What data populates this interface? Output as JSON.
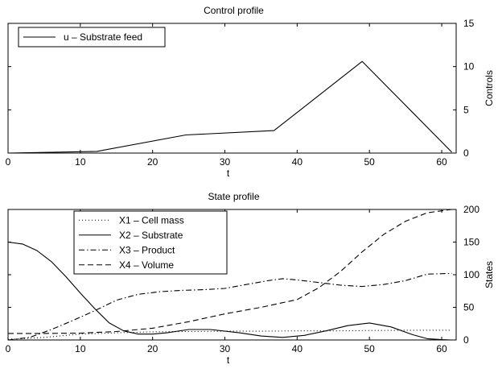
{
  "chart_data": [
    {
      "type": "line",
      "title": "Control profile",
      "xlabel": "t",
      "ylabel": "Controls",
      "ylabel_side": "right",
      "xlim": [
        0,
        62
      ],
      "ylim": [
        0,
        15
      ],
      "xticks": [
        0,
        10,
        20,
        30,
        40,
        50,
        60
      ],
      "yticks": [
        0,
        5,
        10,
        15
      ],
      "grid": false,
      "legend_position": "top-left",
      "series": [
        {
          "name": "u – Substrate feed",
          "style": "solid",
          "color": "#000000",
          "x": [
            0,
            12.3,
            24.6,
            36.8,
            49.0,
            61.4
          ],
          "y": [
            0,
            0.2,
            2.1,
            2.6,
            10.6,
            0.1
          ]
        }
      ]
    },
    {
      "type": "line",
      "title": "State profile",
      "xlabel": "t",
      "ylabel": "States",
      "ylabel_side": "right",
      "xlim": [
        0,
        62
      ],
      "ylim": [
        0,
        200
      ],
      "xticks": [
        0,
        10,
        20,
        30,
        40,
        50,
        60
      ],
      "yticks": [
        0,
        50,
        100,
        150,
        200
      ],
      "grid": false,
      "legend_position": "top-left",
      "series": [
        {
          "name": "X1 – Cell mass",
          "style": "dotted",
          "color": "#000000",
          "x": [
            0,
            5,
            10,
            15,
            20,
            25,
            30,
            35,
            40,
            45,
            50,
            55,
            60,
            61.4
          ],
          "y": [
            1,
            4,
            9,
            11,
            12.5,
            13,
            13.5,
            13.5,
            14,
            14,
            14.5,
            15,
            15,
            15
          ]
        },
        {
          "name": "X2 – Substrate",
          "style": "solid",
          "color": "#000000",
          "x": [
            0,
            2,
            4,
            6,
            8,
            10,
            12,
            14,
            16,
            18,
            20,
            22,
            25,
            28,
            32,
            35,
            38,
            41,
            44,
            47,
            50,
            53,
            56,
            58,
            60,
            61.4
          ],
          "y": [
            150,
            147,
            137,
            120,
            97,
            72,
            48,
            26,
            14,
            9,
            9,
            11,
            16,
            16,
            11,
            6,
            4,
            7,
            14,
            22,
            26,
            20,
            8,
            2,
            0.5,
            0
          ]
        },
        {
          "name": "X3 – Product",
          "style": "dashdot",
          "color": "#000000",
          "x": [
            0,
            3,
            6,
            9,
            12,
            15,
            18,
            21,
            24,
            27,
            30,
            33,
            36,
            38,
            40,
            43,
            46,
            49,
            52,
            55,
            58,
            61.4
          ],
          "y": [
            0,
            4,
            16,
            30,
            45,
            61,
            70,
            74,
            76,
            77,
            79,
            85,
            91,
            94,
            92,
            88,
            84,
            82,
            85,
            91,
            101,
            102
          ]
        },
        {
          "name": "X4 – Volume",
          "style": "dashed",
          "color": "#000000",
          "x": [
            0,
            5,
            10,
            15,
            20,
            25,
            30,
            35,
            40,
            43,
            46,
            49,
            52,
            55,
            58,
            61.4
          ],
          "y": [
            10,
            10,
            10.5,
            13,
            18,
            28,
            40,
            50,
            62,
            80,
            105,
            135,
            162,
            182,
            195,
            200
          ]
        }
      ]
    }
  ]
}
